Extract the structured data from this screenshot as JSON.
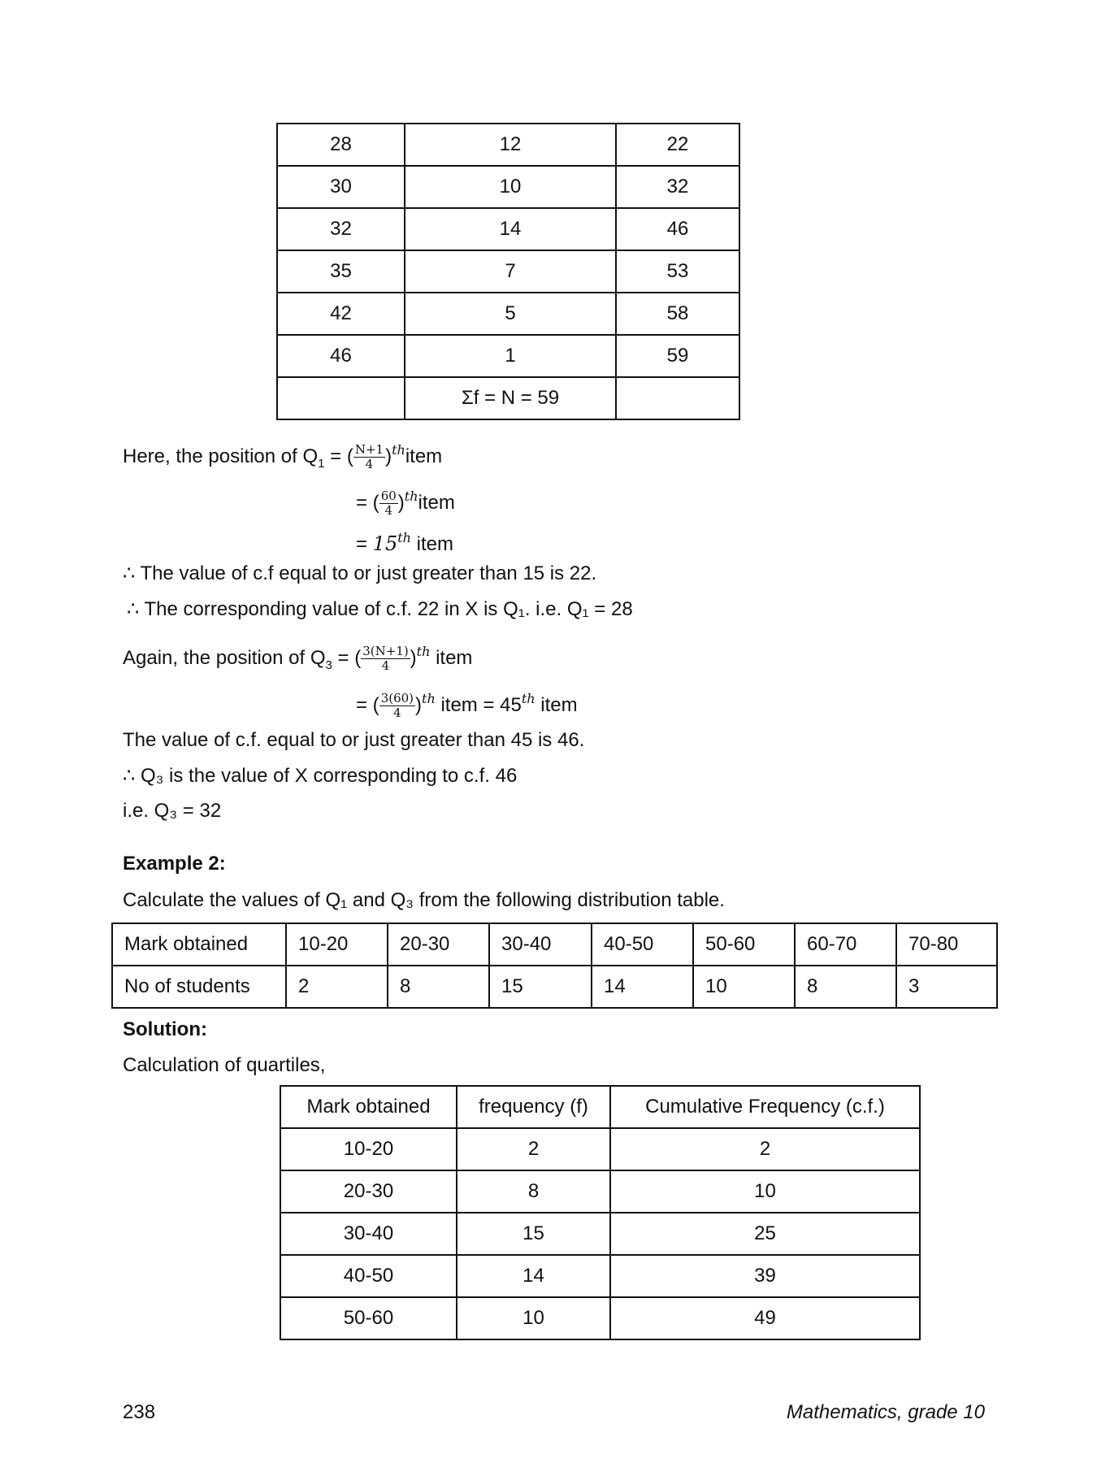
{
  "table1": {
    "rows": [
      [
        "28",
        "12",
        "22"
      ],
      [
        "30",
        "10",
        "32"
      ],
      [
        "32",
        "14",
        "46"
      ],
      [
        "35",
        "7",
        "53"
      ],
      [
        "42",
        "5",
        "58"
      ],
      [
        "46",
        "1",
        "59"
      ]
    ],
    "sum_row": [
      "",
      "Σf = N = 59",
      ""
    ]
  },
  "solution1": {
    "q1_pos_label": "Here, the position of Q",
    "q1_num": "N+1",
    "den": "4",
    "th": "th",
    "item": "item",
    "eq": "=",
    "n60": "60",
    "q1_result": "15",
    "line_cf1": "∴ The value of c.f equal to or just greater than 15 is 22.",
    "line_cf2": "∴ The corresponding value of c.f. 22 in X is Q₁. i.e. Q₁ = 28",
    "q3_pos_label": "Again, the position of Q",
    "q3_num": "3(N+1)",
    "n3_60": "3(60)",
    "q3_result_prefix": "item = 45",
    "line_cf3": "The value of c.f. equal to or just greater than 45 is 46.",
    "line_cf4": "∴ Q₃ is the value of X corresponding  to c.f. 46",
    "line_cf5": "i.e. Q₃ = 32"
  },
  "example2": {
    "heading": "Example 2:",
    "question": "Calculate the values of Q₁ and Q₃ from the following distribution table.",
    "rows": [
      [
        "Mark obtained",
        "10-20",
        "20-30",
        "30-40",
        "40-50",
        "50-60",
        "60-70",
        "70-80"
      ],
      [
        "No of students",
        "2",
        "8",
        "15",
        "14",
        "10",
        "8",
        "3"
      ]
    ],
    "solution_heading": "Solution:",
    "solution_text": "Calculation of quartiles,"
  },
  "table2": {
    "headers": [
      "Mark obtained",
      "frequency (f)",
      "Cumulative Frequency (c.f.)"
    ],
    "rows": [
      [
        "10-20",
        "2",
        "2"
      ],
      [
        "20-30",
        "8",
        "10"
      ],
      [
        "30-40",
        "15",
        "25"
      ],
      [
        "40-50",
        "14",
        "39"
      ],
      [
        "50-60",
        "10",
        "49"
      ]
    ]
  },
  "footer": {
    "page_number": "238",
    "book_title": "Mathematics, grade 10"
  }
}
